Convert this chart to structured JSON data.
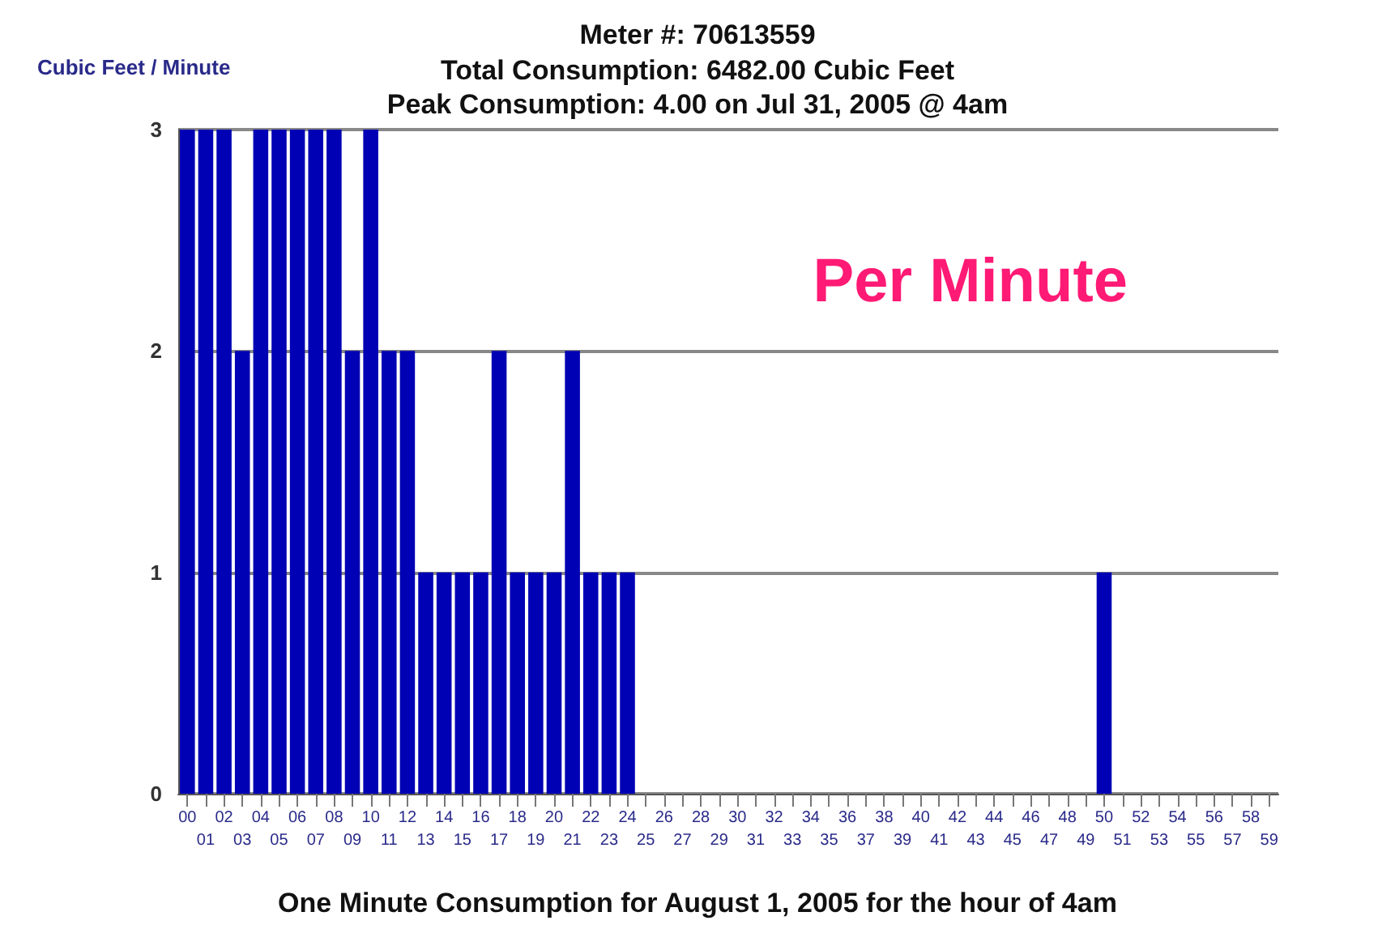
{
  "chart_data": {
    "type": "bar",
    "title": "Meter #: 70613559",
    "subtitle": "Total Consumption: 6482.00 Cubic Feet\nPeak Consumption: 4.00 on Jul 31, 2005 @ 4am",
    "xlabel": "One Minute Consumption for August 1, 2005 for the hour of 4am",
    "ylabel": "Cubic Feet / Minute",
    "annotations": [
      "Per Minute"
    ],
    "categories": [
      "00",
      "01",
      "02",
      "03",
      "04",
      "05",
      "06",
      "07",
      "08",
      "09",
      "10",
      "11",
      "12",
      "13",
      "14",
      "15",
      "16",
      "17",
      "18",
      "19",
      "20",
      "21",
      "22",
      "23",
      "24",
      "25",
      "26",
      "27",
      "28",
      "29",
      "30",
      "31",
      "32",
      "33",
      "34",
      "35",
      "36",
      "37",
      "38",
      "39",
      "40",
      "41",
      "42",
      "43",
      "44",
      "45",
      "46",
      "47",
      "48",
      "49",
      "50",
      "51",
      "52",
      "53",
      "54",
      "55",
      "56",
      "57",
      "58",
      "59"
    ],
    "values": [
      3,
      3,
      3,
      2,
      3,
      3,
      3,
      3,
      3,
      2,
      3,
      2,
      2,
      1,
      1,
      1,
      1,
      2,
      1,
      1,
      1,
      2,
      1,
      1,
      1,
      0,
      0,
      0,
      0,
      0,
      0,
      0,
      0,
      0,
      0,
      0,
      0,
      0,
      0,
      0,
      0,
      0,
      0,
      0,
      0,
      0,
      0,
      0,
      0,
      0,
      1,
      0,
      0,
      0,
      0,
      0,
      0,
      0,
      0,
      0
    ],
    "color": "#0000b4",
    "ylim": [
      0,
      3
    ],
    "yticks": [
      0,
      1,
      2,
      3
    ],
    "grid": "y"
  }
}
